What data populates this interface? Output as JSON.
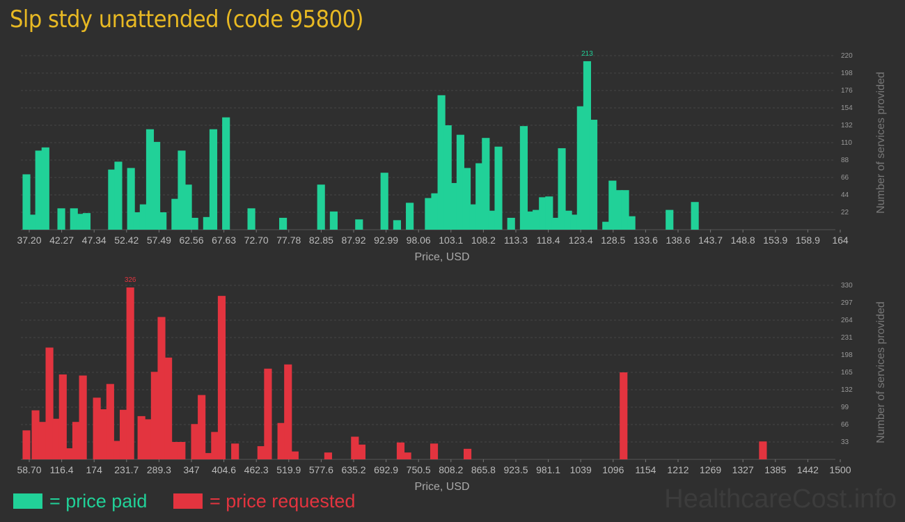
{
  "title": "Slp stdy unattended (code 95800)",
  "legend": {
    "paid": "= price paid",
    "requested": "= price requested"
  },
  "watermark": "HealthcareCost.info",
  "colors": {
    "paid": "#21d198",
    "requested": "#e3343f",
    "title": "#e8b923",
    "background": "#2f2f2f"
  },
  "chart_data": [
    {
      "type": "bar",
      "series_name": "price paid",
      "xlabel": "Price, USD",
      "ylabel": "Number of services provided",
      "ylim": [
        0,
        220
      ],
      "yticks": [
        "22",
        "44",
        "66",
        "88",
        "110",
        "132",
        "154",
        "176",
        "198",
        "220"
      ],
      "xticks": [
        "37.20",
        "42.27",
        "47.34",
        "52.42",
        "57.49",
        "62.56",
        "67.63",
        "72.70",
        "77.78",
        "82.85",
        "87.92",
        "92.99",
        "98.06",
        "103.1",
        "108.2",
        "113.3",
        "118.4",
        "123.4",
        "128.5",
        "133.6",
        "138.6",
        "143.7",
        "148.8",
        "153.9",
        "158.9",
        "164"
      ],
      "xlim": [
        37.2,
        164
      ],
      "peak_label": "213",
      "grid": true,
      "values": [
        [
          37.2,
          70
        ],
        [
          38.2,
          19
        ],
        [
          39.2,
          100
        ],
        [
          40.2,
          104
        ],
        [
          42.7,
          27
        ],
        [
          44.7,
          27
        ],
        [
          45.7,
          20
        ],
        [
          46.7,
          21
        ],
        [
          50.7,
          76
        ],
        [
          51.7,
          86
        ],
        [
          53.7,
          78
        ],
        [
          54.7,
          22
        ],
        [
          55.7,
          32
        ],
        [
          56.7,
          127
        ],
        [
          57.7,
          111
        ],
        [
          58.7,
          22
        ],
        [
          60.7,
          39
        ],
        [
          61.7,
          100
        ],
        [
          62.7,
          57
        ],
        [
          63.7,
          15
        ],
        [
          65.7,
          16
        ],
        [
          66.7,
          127
        ],
        [
          68.7,
          142
        ],
        [
          72.7,
          27
        ],
        [
          77.7,
          15
        ],
        [
          83.7,
          57
        ],
        [
          85.7,
          23
        ],
        [
          89.7,
          13
        ],
        [
          93.7,
          72
        ],
        [
          95.7,
          12
        ],
        [
          97.7,
          34
        ],
        [
          100.7,
          40
        ],
        [
          101.7,
          46
        ],
        [
          102.7,
          170
        ],
        [
          103.7,
          132
        ],
        [
          104.7,
          59
        ],
        [
          105.7,
          120
        ],
        [
          106.7,
          78
        ],
        [
          107.7,
          32
        ],
        [
          108.7,
          84
        ],
        [
          109.7,
          116
        ],
        [
          110.7,
          24
        ],
        [
          111.7,
          105
        ],
        [
          113.7,
          15
        ],
        [
          115.7,
          131
        ],
        [
          116.7,
          23
        ],
        [
          117.7,
          25
        ],
        [
          118.7,
          41
        ],
        [
          119.7,
          42
        ],
        [
          120.7,
          15
        ],
        [
          121.7,
          103
        ],
        [
          122.7,
          24
        ],
        [
          123.7,
          19
        ],
        [
          124.7,
          156
        ],
        [
          125.7,
          213
        ],
        [
          126.7,
          139
        ],
        [
          128.7,
          10
        ],
        [
          129.7,
          62
        ],
        [
          130.7,
          50
        ],
        [
          131.7,
          50
        ],
        [
          132.7,
          17
        ],
        [
          138.7,
          25
        ],
        [
          142.7,
          35
        ]
      ]
    },
    {
      "type": "bar",
      "series_name": "price requested",
      "xlabel": "Price, USD",
      "ylabel": "Number of services provided",
      "ylim": [
        0,
        330
      ],
      "yticks": [
        "33",
        "66",
        "99",
        "132",
        "165",
        "198",
        "231",
        "264",
        "297",
        "330"
      ],
      "xticks": [
        "58.70",
        "116.4",
        "174",
        "231.7",
        "289.3",
        "347",
        "404.6",
        "462.3",
        "519.9",
        "577.6",
        "635.2",
        "692.9",
        "750.5",
        "808.2",
        "865.8",
        "923.5",
        "981.1",
        "1039",
        "1096",
        "1154",
        "1212",
        "1269",
        "1327",
        "1385",
        "1442",
        "1500"
      ],
      "xlim": [
        58.7,
        1500
      ],
      "peak_label": "326",
      "grid": true,
      "values": [
        [
          58.7,
          55
        ],
        [
          75,
          93
        ],
        [
          88,
          71
        ],
        [
          100,
          212
        ],
        [
          112,
          77
        ],
        [
          124,
          161
        ],
        [
          136,
          21
        ],
        [
          148,
          71
        ],
        [
          160,
          159
        ],
        [
          185,
          117
        ],
        [
          197,
          95
        ],
        [
          209,
          143
        ],
        [
          221,
          35
        ],
        [
          233,
          94
        ],
        [
          245,
          326
        ],
        [
          265,
          82
        ],
        [
          277,
          76
        ],
        [
          289,
          166
        ],
        [
          301,
          270
        ],
        [
          313,
          193
        ],
        [
          325,
          33
        ],
        [
          337,
          33
        ],
        [
          361,
          67
        ],
        [
          373,
          122
        ],
        [
          385,
          12
        ],
        [
          397,
          52
        ],
        [
          409,
          310
        ],
        [
          433,
          30
        ],
        [
          480,
          25
        ],
        [
          492,
          172
        ],
        [
          516,
          69
        ],
        [
          528,
          180
        ],
        [
          540,
          15
        ],
        [
          600,
          13
        ],
        [
          648,
          43
        ],
        [
          660,
          28
        ],
        [
          730,
          32
        ],
        [
          742,
          13
        ],
        [
          790,
          30
        ],
        [
          850,
          20
        ],
        [
          1130,
          165
        ],
        [
          1380,
          34
        ]
      ]
    }
  ]
}
